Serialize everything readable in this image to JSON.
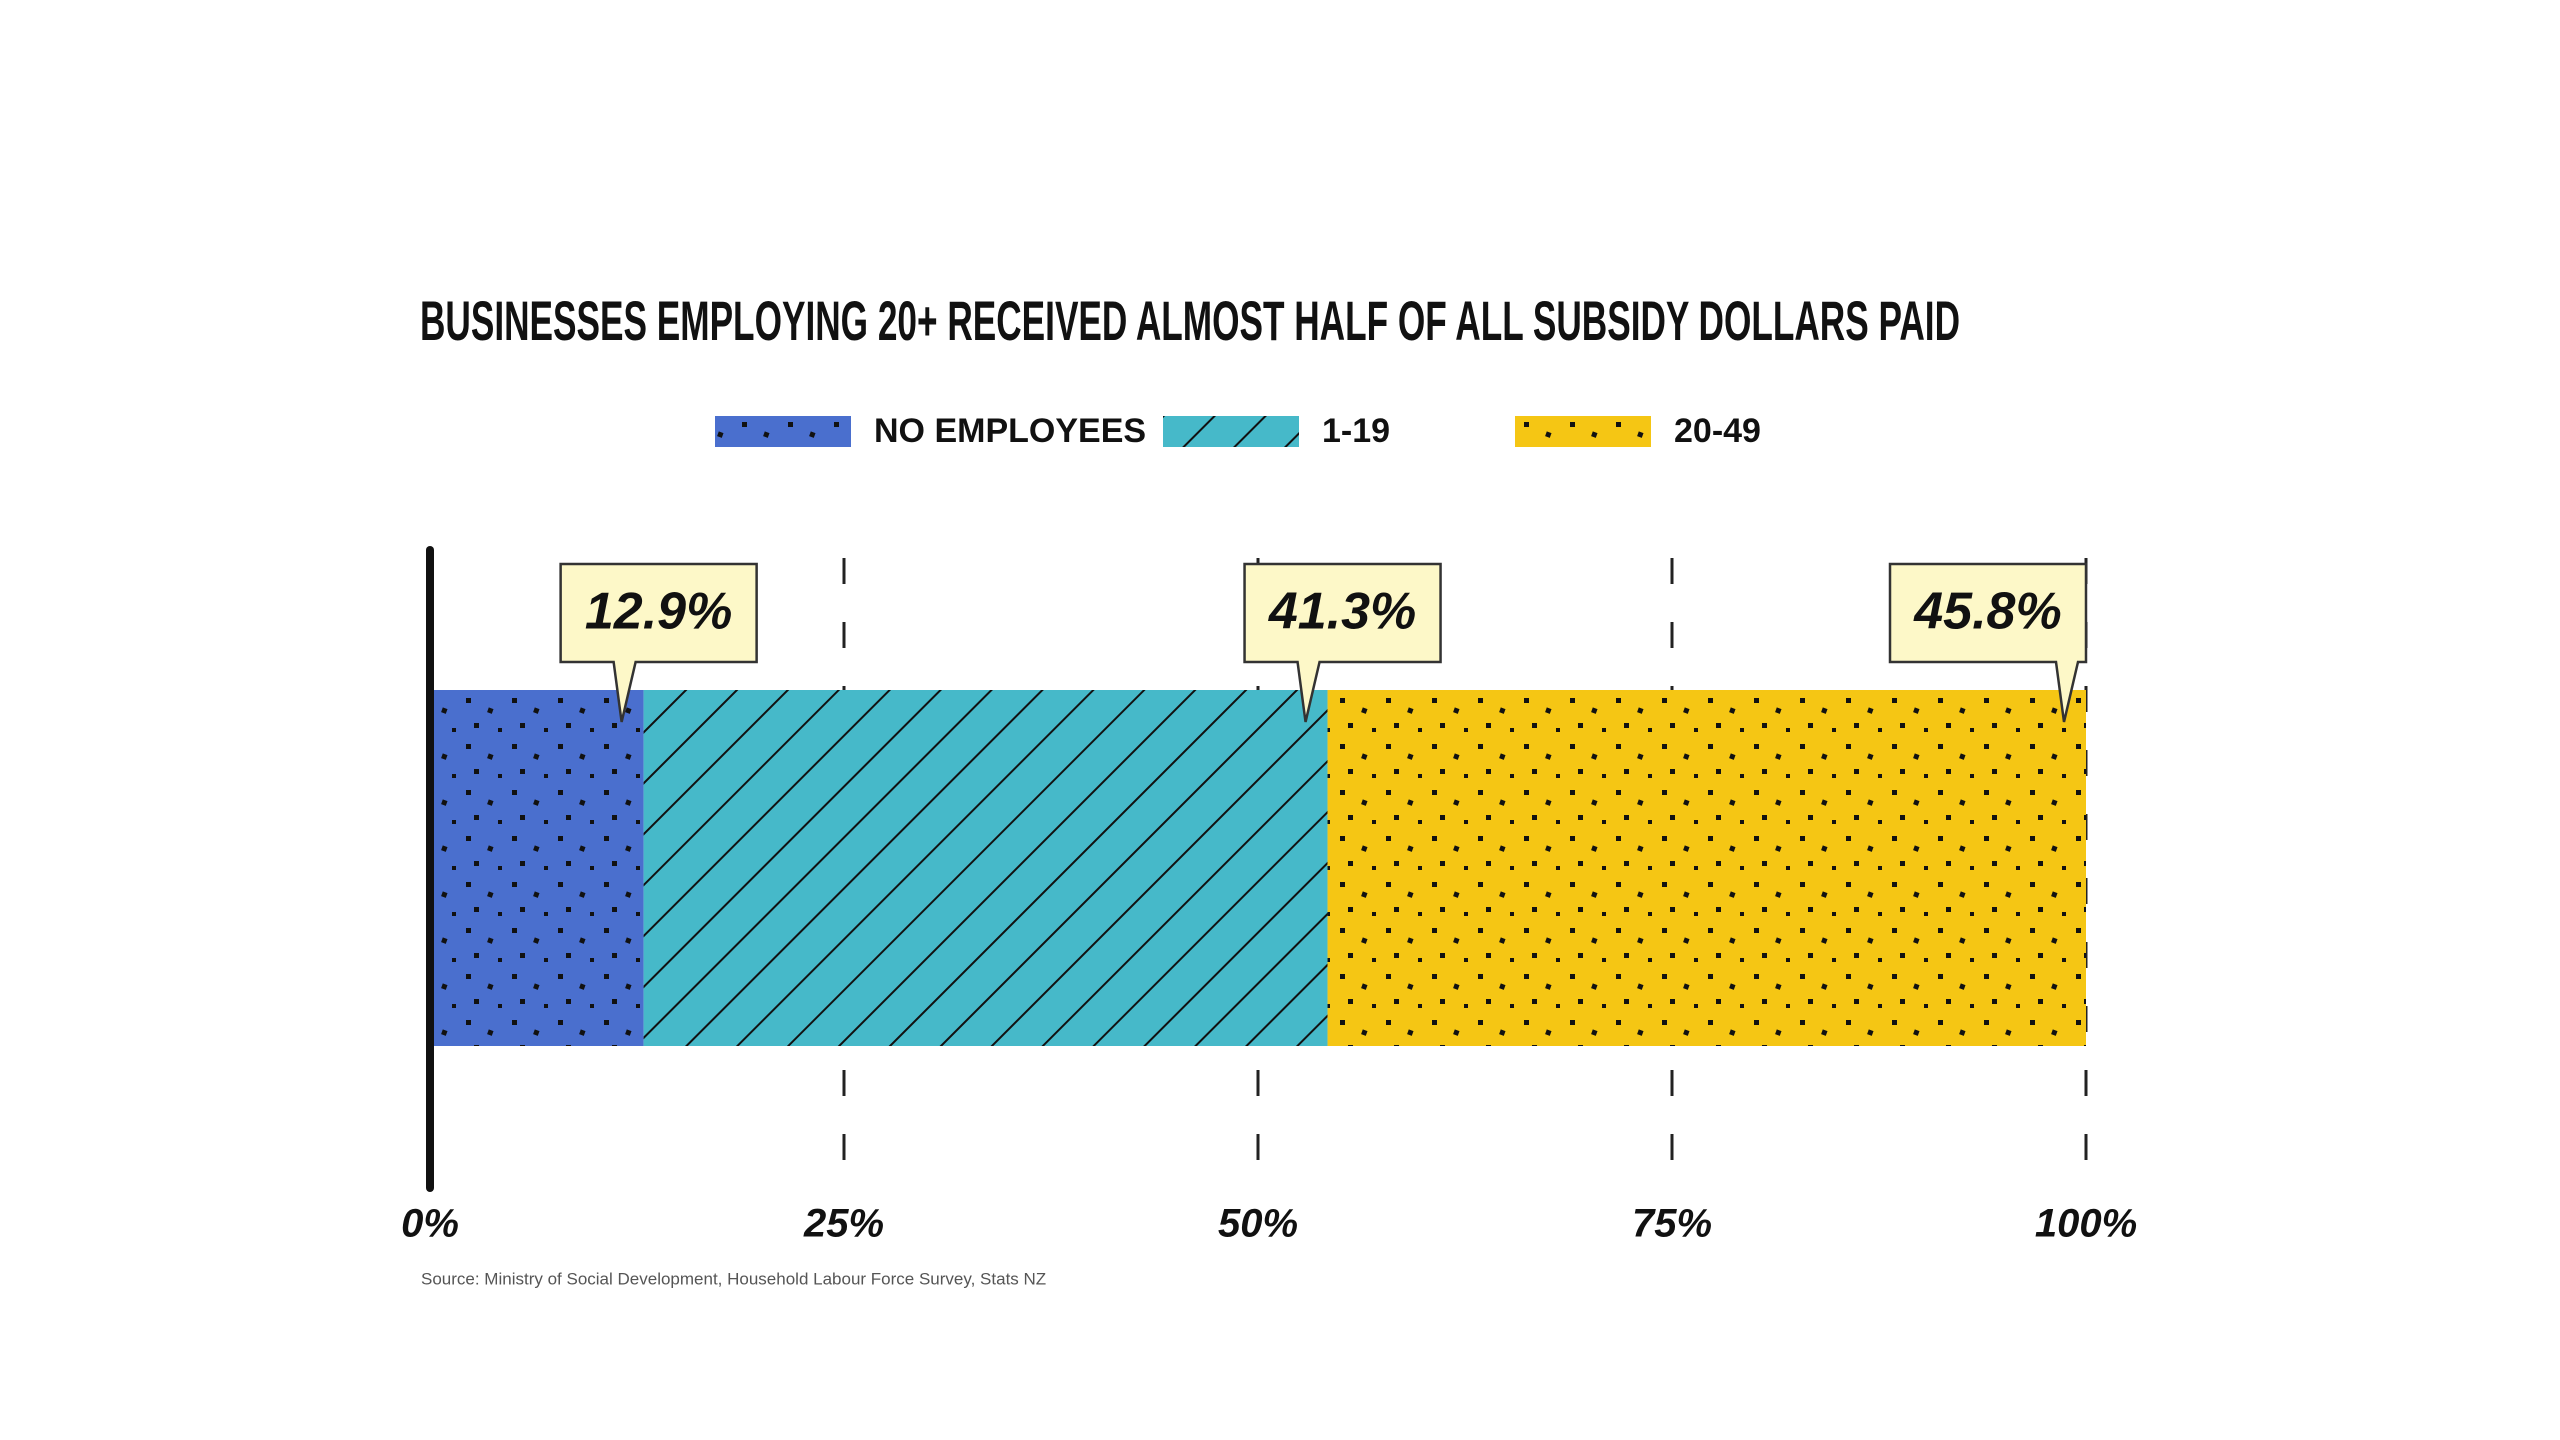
{
  "chart_data": {
    "type": "bar",
    "orientation": "horizontal",
    "stacked": true,
    "title": "BUSINESSES EMPLOYING 20+ RECEIVED ALMOST HALF OF ALL SUBSIDY DOLLARS PAID",
    "source": "Source: Ministry of Social Development, Household Labour Force Survey, Stats NZ",
    "categories": [
      null
    ],
    "series": [
      {
        "name": "NO EMPLOYEES",
        "color": "#4a6fce",
        "pattern": "dots",
        "values": [
          12.9
        ],
        "value_labels": [
          "12.9%"
        ]
      },
      {
        "name": "1-19",
        "color": "#46b9c9",
        "pattern": "hatch",
        "values": [
          41.3
        ],
        "value_labels": [
          "41.3%"
        ]
      },
      {
        "name": "20-49",
        "color": "#f5c614",
        "pattern": "dots",
        "values": [
          45.8
        ],
        "value_labels": [
          "45.8%"
        ]
      }
    ],
    "xlim": [
      0,
      100
    ],
    "xticks": [
      {
        "value": 0,
        "label": "0%"
      },
      {
        "value": 25,
        "label": "25%"
      },
      {
        "value": 50,
        "label": "50%"
      },
      {
        "value": 75,
        "label": "75%"
      },
      {
        "value": 100,
        "label": "100%"
      }
    ],
    "grid": true,
    "legend": "top"
  }
}
